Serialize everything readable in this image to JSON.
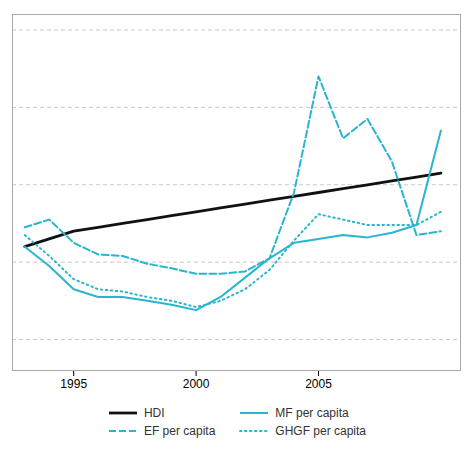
{
  "chart_data": {
    "type": "line",
    "x": [
      1993,
      1994,
      1995,
      1996,
      1997,
      1998,
      1999,
      2000,
      2001,
      2002,
      2003,
      2004,
      2005,
      2006,
      2007,
      2008,
      2009,
      2010
    ],
    "series": [
      {
        "name": "HDI",
        "color": "#111111",
        "line_style": "solid",
        "values": [
          0.62,
          0.63,
          0.64,
          0.645,
          0.65,
          0.655,
          0.66,
          0.665,
          0.67,
          0.675,
          0.68,
          0.685,
          0.69,
          0.695,
          0.7,
          0.705,
          0.71,
          0.715
        ]
      },
      {
        "name": "MF per capita",
        "color": "#2ab5cf",
        "line_style": "solid",
        "values": [
          0.62,
          0.595,
          0.565,
          0.555,
          0.555,
          0.55,
          0.545,
          0.538,
          0.555,
          0.58,
          0.605,
          0.625,
          0.63,
          0.635,
          0.632,
          0.638,
          0.648,
          0.77
        ]
      },
      {
        "name": "EF per capita",
        "color": "#2ab5cf",
        "line_style": "dashed",
        "values": [
          0.645,
          0.655,
          0.625,
          0.61,
          0.608,
          0.598,
          0.592,
          0.585,
          0.585,
          0.588,
          0.605,
          0.69,
          0.84,
          0.76,
          0.785,
          0.73,
          0.635,
          0.64
        ]
      },
      {
        "name": "GHGF per capita",
        "color": "#2ab5cf",
        "line_style": "dotted",
        "values": [
          0.635,
          0.608,
          0.578,
          0.565,
          0.562,
          0.555,
          0.55,
          0.542,
          0.55,
          0.565,
          0.59,
          0.628,
          0.662,
          0.655,
          0.648,
          0.648,
          0.648,
          0.665
        ]
      }
    ],
    "xlim": [
      1992.5,
      2010.8
    ],
    "xticks": [
      1995,
      2000,
      2005
    ],
    "ylim": [
      0.46,
      0.92
    ],
    "yticks": [
      0.5,
      0.6,
      0.7,
      0.8,
      0.9
    ],
    "grid": true,
    "tick_labels": "x",
    "legend": "bottom"
  }
}
